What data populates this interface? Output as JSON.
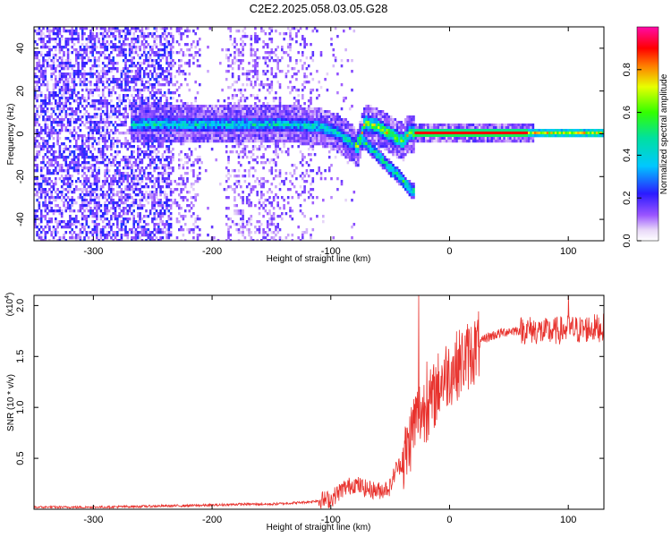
{
  "chart_data": [
    {
      "type": "heatmap",
      "title": "C2E2.2025.058.03.05.G28",
      "xlabel": "Height of straight line (km)",
      "ylabel": "Frequency (Hz)",
      "xlim": [
        -350,
        130
      ],
      "ylim": [
        -50,
        50
      ],
      "x_ticks": [
        -300,
        -200,
        -100,
        0,
        100
      ],
      "x_tick_labels": [
        "-300",
        "-200",
        "-100",
        "0",
        "100"
      ],
      "y_ticks": [
        -40,
        -20,
        0,
        20,
        40
      ],
      "y_tick_labels": [
        "-40",
        "-20",
        "0",
        "20",
        "40"
      ],
      "colorbar": {
        "label": "Normalized spectral amplitude",
        "range": [
          0,
          1
        ],
        "ticks": [
          0.0,
          0.2,
          0.4,
          0.6,
          0.8
        ],
        "tick_labels": [
          "0.0",
          "0.2",
          "0.4",
          "0.6",
          "0.8"
        ],
        "colormap": "rainbow (white-violet-blue-cyan-green-yellow-red-magenta)"
      },
      "ridge": {
        "description": "dominant frequency ridge",
        "points": [
          [
            -265,
            5
          ],
          [
            -230,
            5
          ],
          [
            -200,
            5
          ],
          [
            -160,
            5
          ],
          [
            -130,
            5
          ],
          [
            -110,
            4
          ],
          [
            -95,
            1
          ],
          [
            -85,
            -3
          ],
          [
            -78,
            -6
          ],
          [
            -72,
            6
          ],
          [
            -62,
            4
          ],
          [
            -50,
            0
          ],
          [
            -40,
            -3
          ],
          [
            -35,
            1
          ],
          [
            -25,
            1
          ],
          [
            -10,
            1
          ],
          [
            0,
            1
          ],
          [
            50,
            1
          ],
          [
            100,
            1
          ],
          [
            130,
            1
          ]
        ]
      },
      "secondary_branch": {
        "points": [
          [
            -75,
            -2
          ],
          [
            -62,
            -9
          ],
          [
            -50,
            -16
          ],
          [
            -42,
            -20
          ],
          [
            -33,
            -26
          ]
        ]
      }
    },
    {
      "type": "line",
      "title": "",
      "xlabel": "Height of straight line (km)",
      "ylabel": "SNR (10 * v/v)",
      "y_multiplier": "(x10^4)",
      "y_multiplier_base": "(x10",
      "y_multiplier_exp": "4",
      "y_multiplier_close": ")",
      "xlim": [
        -350,
        130
      ],
      "ylim": [
        0,
        2.1
      ],
      "x_ticks": [
        -300,
        -200,
        -100,
        0,
        100
      ],
      "x_tick_labels": [
        "-300",
        "-200",
        "-100",
        "0",
        "100"
      ],
      "y_ticks": [
        0.5,
        1.0,
        1.5,
        2.0
      ],
      "y_tick_labels": [
        "0.5",
        "1.0",
        "1.5",
        "2.0"
      ],
      "color": "#e8322d",
      "series": [
        {
          "x": [
            -350,
            -300,
            -250,
            -200,
            -175,
            -150,
            -120,
            -100,
            -90,
            -80,
            -70,
            -60,
            -50,
            -45,
            -40,
            -35,
            -30,
            -25,
            -20,
            -15,
            -10,
            -5,
            0,
            10,
            20,
            30,
            40,
            50,
            60,
            70,
            80,
            90,
            100,
            110,
            120,
            130
          ],
          "values": [
            0.02,
            0.02,
            0.03,
            0.04,
            0.05,
            0.05,
            0.07,
            0.1,
            0.2,
            0.25,
            0.2,
            0.18,
            0.22,
            0.4,
            0.45,
            0.6,
            0.85,
            0.95,
            1.0,
            1.05,
            1.2,
            1.3,
            1.35,
            1.45,
            1.55,
            1.68,
            1.72,
            1.75,
            1.76,
            1.76,
            1.74,
            1.75,
            1.77,
            1.76,
            1.78,
            1.78
          ]
        }
      ],
      "spikes": [
        {
          "x": -26,
          "y": 2.1
        },
        {
          "x": -19,
          "y": 1.45
        },
        {
          "x": 100,
          "y": 2.1
        }
      ]
    }
  ]
}
